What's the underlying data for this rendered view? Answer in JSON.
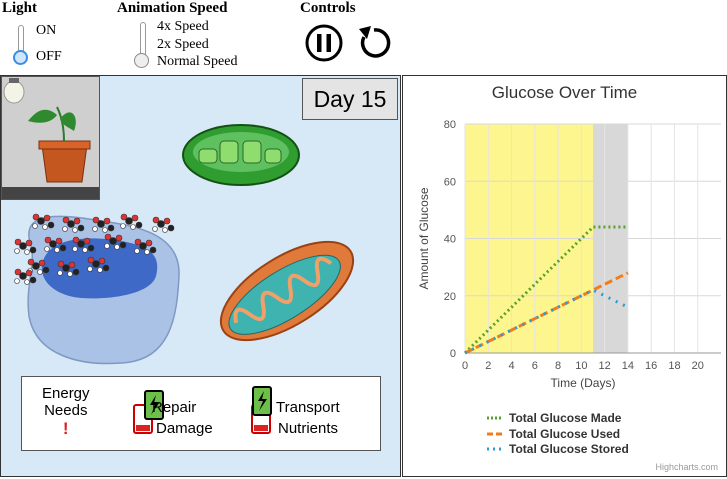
{
  "controls": {
    "light": {
      "title": "Light",
      "on_label": "ON",
      "off_label": "OFF",
      "selected": "OFF"
    },
    "speed": {
      "title": "Animation Speed",
      "options": [
        "4x Speed",
        "2x Speed",
        "Normal Speed"
      ],
      "selected": "Normal Speed"
    },
    "controls_title": "Controls",
    "pause_icon": "pause-icon",
    "reset_icon": "reset-icon"
  },
  "simulation": {
    "day_label": "Day 15",
    "energy": {
      "needs_label_1": "Energy",
      "needs_label_2": "Needs",
      "alert": "!",
      "repair_1": "Repair",
      "repair_2": "Damage",
      "transport_1": "Transport",
      "transport_2": "Nutrients"
    },
    "colors": {
      "background": "#d7e8f7",
      "cell": "#a9c2e6",
      "pool": "#3f69c6",
      "chloroplast": "#2f9d2f",
      "mitochondrion": "#e0793a"
    }
  },
  "chart_data": {
    "type": "line",
    "title": "Glucose Over Time",
    "xlabel": "Time (Days)",
    "ylabel": "Amount of Glucose",
    "xlim": [
      0,
      22
    ],
    "ylim": [
      0,
      80
    ],
    "x_ticks": [
      0,
      2,
      4,
      6,
      8,
      10,
      12,
      14,
      16,
      18,
      20
    ],
    "y_ticks": [
      0,
      20,
      40,
      60,
      80
    ],
    "bands": [
      {
        "from": 0,
        "to": 11,
        "color": "#fdf68e"
      },
      {
        "from": 11,
        "to": 14,
        "color": "#d8d8d8"
      }
    ],
    "series": [
      {
        "name": "Total Glucose Made",
        "color": "#5aa02c",
        "dash": "dot",
        "points": [
          [
            0,
            0
          ],
          [
            11,
            44
          ],
          [
            14,
            44
          ]
        ]
      },
      {
        "name": "Total Glucose Used",
        "color": "#f07c1c",
        "dash": "dash",
        "points": [
          [
            0,
            0
          ],
          [
            14,
            28
          ]
        ]
      },
      {
        "name": "Total Glucose Stored",
        "color": "#2b9bd1",
        "dash": "dot",
        "points": [
          [
            0,
            0
          ],
          [
            11,
            22
          ],
          [
            12,
            20
          ],
          [
            13,
            18
          ],
          [
            14,
            16
          ]
        ]
      }
    ],
    "credit": "Highcharts.com"
  }
}
